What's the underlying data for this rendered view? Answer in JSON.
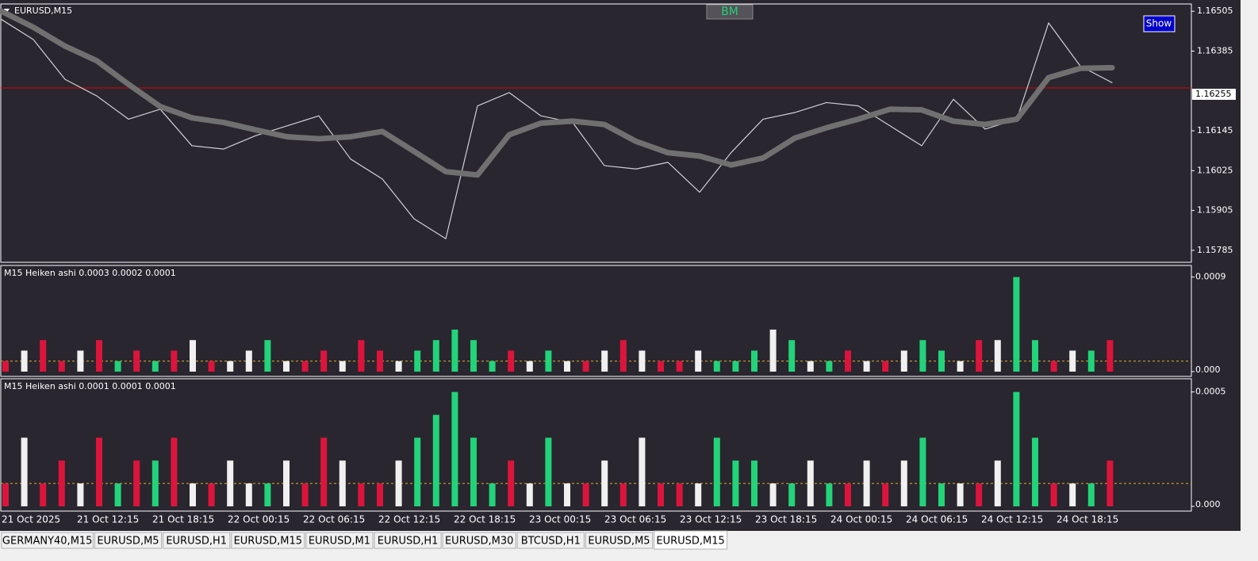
{
  "window": {
    "bm_button": "BM",
    "show_button": "Show",
    "time_axis": [
      "21 Oct 2025",
      "21 Oct 12:15",
      "21 Oct 18:15",
      "22 Oct 00:15",
      "22 Oct 06:15",
      "22 Oct 12:15",
      "22 Oct 18:15",
      "23 Oct 00:15",
      "23 Oct 06:15",
      "23 Oct 12:15",
      "23 Oct 18:15",
      "24 Oct 00:15",
      "24 Oct 06:15",
      "24 Oct 12:15",
      "24 Oct 18:15"
    ],
    "tabs": [
      "GERMANY40,M15",
      "EURUSD,M5",
      "EURUSD,H1",
      "EURUSD,M15",
      "EURUSD,M1",
      "EURUSD,H1",
      "EURUSD,M30",
      "BTCUSD,H1",
      "EURUSD,M5",
      "EURUSD,M15"
    ],
    "active_tab": 9
  },
  "chart_data": [
    {
      "type": "line",
      "title": "EURUSD,M15",
      "ylim": [
        1.15749,
        1.16527
      ],
      "yticks": [
        1.16505,
        1.16385,
        1.16145,
        1.16025,
        1.15905,
        1.15785
      ],
      "ask_line": 1.16274,
      "bid_label": 1.16255,
      "series": [
        {
          "color": "#d0d0d0",
          "values": [
            1.1648,
            1.1642,
            1.163,
            1.1625,
            1.1618,
            1.1621,
            1.161,
            1.1609,
            1.1613,
            1.1616,
            1.1619,
            1.1606,
            1.16,
            1.1588,
            1.1582,
            1.1622,
            1.1626,
            1.1619,
            1.1617,
            1.1604,
            1.1603,
            1.1605,
            1.1596,
            1.1608,
            1.1618,
            1.162,
            1.1623,
            1.1622,
            1.1616,
            1.161,
            1.1624,
            1.1615,
            1.1618,
            1.1647,
            1.1634,
            1.1629
          ]
        },
        {
          "color": "#707070",
          "values": [
            1.16505,
            1.16457,
            1.164,
            1.16356,
            1.16285,
            1.16218,
            1.16184,
            1.1617,
            1.16148,
            1.16127,
            1.16121,
            1.16127,
            1.16143,
            1.16083,
            1.16022,
            1.16012,
            1.16133,
            1.16168,
            1.16174,
            1.16164,
            1.16113,
            1.16079,
            1.16069,
            1.16042,
            1.16063,
            1.16123,
            1.16154,
            1.1618,
            1.1621,
            1.16208,
            1.16174,
            1.16164,
            1.1618,
            1.16305,
            1.16333,
            1.16335
          ]
        }
      ]
    },
    {
      "type": "bar",
      "title": "M15 Heiken ashi  0.0003 0.0002 0.0001",
      "ylim": [
        0,
        0.00095
      ],
      "yticks": [
        {
          "value": 0,
          "label": "0.000"
        },
        0.0009
      ],
      "level": 0.0001,
      "values": [
        0.0001,
        0.0002,
        0.0003,
        0.0001,
        0.0002,
        0.0003,
        0.0001,
        0.0002,
        0.0001,
        0.0002,
        0.0003,
        0.0001,
        0.0001,
        0.0002,
        0.0003,
        0.0001,
        0.0001,
        0.0002,
        0.0001,
        0.0003,
        0.0002,
        0.0001,
        0.0002,
        0.0003,
        0.0004,
        0.0003,
        0.0001,
        0.0002,
        0.0001,
        0.0002,
        0.0001,
        0.0001,
        0.0002,
        0.0003,
        0.0002,
        0.0001,
        0.0001,
        0.0002,
        0.0001,
        0.0001,
        0.0002,
        0.0004,
        0.0003,
        0.0001,
        0.0001,
        0.0002,
        0.0001,
        0.0001,
        0.0002,
        0.0003,
        0.0002,
        0.0001,
        0.0003,
        0.0003,
        0.0009,
        0.0003,
        0.0001,
        0.0002,
        0.0002,
        0.0003
      ],
      "colors": [
        "#dc143c",
        "#f0f0f0",
        "#dc143c",
        "#dc143c",
        "#f0f0f0",
        "#dc143c",
        "#22d37a",
        "#dc143c",
        "#22d37a",
        "#dc143c",
        "#f0f0f0",
        "#dc143c",
        "#f0f0f0",
        "#f0f0f0",
        "#22d37a",
        "#f0f0f0",
        "#dc143c",
        "#dc143c",
        "#f0f0f0",
        "#dc143c",
        "#dc143c",
        "#f0f0f0",
        "#22d37a",
        "#22d37a",
        "#22d37a",
        "#22d37a",
        "#22d37a",
        "#dc143c",
        "#f0f0f0",
        "#22d37a",
        "#f0f0f0",
        "#dc143c",
        "#f0f0f0",
        "#dc143c",
        "#f0f0f0",
        "#dc143c",
        "#dc143c",
        "#f0f0f0",
        "#22d37a",
        "#22d37a",
        "#22d37a",
        "#f0f0f0",
        "#22d37a",
        "#f0f0f0",
        "#22d37a",
        "#dc143c",
        "#f0f0f0",
        "#dc143c",
        "#f0f0f0",
        "#22d37a",
        "#22d37a",
        "#f0f0f0",
        "#dc143c",
        "#f0f0f0",
        "#22d37a",
        "#22d37a",
        "#dc143c",
        "#f0f0f0",
        "#22d37a",
        "#dc143c"
      ]
    },
    {
      "type": "bar",
      "title": "M15 Heiken ashi  0.0001 0.0001 0.0001",
      "ylim": [
        0,
        0.00053
      ],
      "yticks": [
        {
          "value": 0,
          "label": "0.000"
        },
        0.0005
      ],
      "level": 0.0001,
      "values": [
        0.0001,
        0.0003,
        0.0001,
        0.0002,
        0.0001,
        0.0003,
        0.0001,
        0.0002,
        0.0002,
        0.0003,
        0.0001,
        0.0001,
        0.0002,
        0.0001,
        0.0001,
        0.0002,
        0.0001,
        0.0003,
        0.0002,
        0.0001,
        0.0001,
        0.0002,
        0.0003,
        0.0004,
        0.0005,
        0.0003,
        0.0001,
        0.0002,
        0.0001,
        0.0003,
        0.0001,
        0.0001,
        0.0002,
        0.0001,
        0.0003,
        0.0001,
        0.0001,
        0.0001,
        0.0003,
        0.0002,
        0.0002,
        0.0001,
        0.0001,
        0.0002,
        0.0001,
        0.0001,
        0.0002,
        0.0001,
        0.0002,
        0.0003,
        0.0001,
        0.0001,
        0.0001,
        0.0002,
        0.0005,
        0.0003,
        0.0001,
        0.0001,
        0.0001,
        0.0002
      ],
      "colors": [
        "#dc143c",
        "#f0f0f0",
        "#dc143c",
        "#dc143c",
        "#f0f0f0",
        "#dc143c",
        "#22d37a",
        "#dc143c",
        "#22d37a",
        "#dc143c",
        "#f0f0f0",
        "#dc143c",
        "#f0f0f0",
        "#f0f0f0",
        "#22d37a",
        "#f0f0f0",
        "#dc143c",
        "#dc143c",
        "#f0f0f0",
        "#dc143c",
        "#dc143c",
        "#f0f0f0",
        "#22d37a",
        "#22d37a",
        "#22d37a",
        "#22d37a",
        "#22d37a",
        "#dc143c",
        "#f0f0f0",
        "#22d37a",
        "#f0f0f0",
        "#dc143c",
        "#f0f0f0",
        "#dc143c",
        "#f0f0f0",
        "#dc143c",
        "#dc143c",
        "#f0f0f0",
        "#22d37a",
        "#22d37a",
        "#22d37a",
        "#f0f0f0",
        "#22d37a",
        "#f0f0f0",
        "#22d37a",
        "#dc143c",
        "#f0f0f0",
        "#dc143c",
        "#f0f0f0",
        "#22d37a",
        "#22d37a",
        "#f0f0f0",
        "#dc143c",
        "#f0f0f0",
        "#22d37a",
        "#22d37a",
        "#dc143c",
        "#f0f0f0",
        "#22d37a",
        "#dc143c"
      ]
    }
  ]
}
